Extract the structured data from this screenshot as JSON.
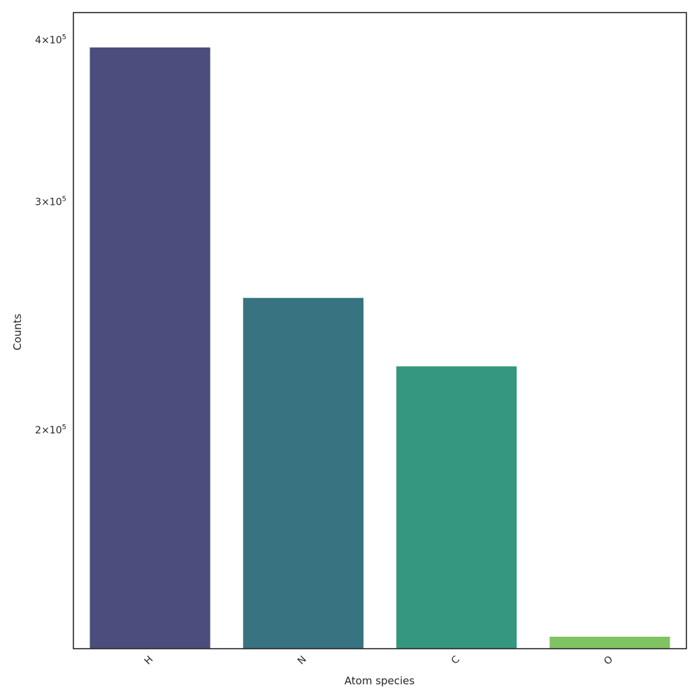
{
  "chart_data": {
    "type": "bar",
    "categories": [
      "H",
      "N",
      "C",
      "O"
    ],
    "values": [
      395000,
      253000,
      224000,
      138500
    ],
    "colors": [
      "#4b4d7c",
      "#377380",
      "#35977d",
      "#80c362"
    ],
    "xlabel": "Atom species",
    "ylabel": "Counts",
    "yscale": "log",
    "ylim": [
      135500,
      420000
    ],
    "yticks": [
      {
        "value": 200000,
        "label_base": "2×10",
        "label_exp": "5"
      },
      {
        "value": 300000,
        "label_base": "3×10",
        "label_exp": "5"
      },
      {
        "value": 400000,
        "label_base": "4×10",
        "label_exp": "5"
      }
    ],
    "grid": false
  }
}
